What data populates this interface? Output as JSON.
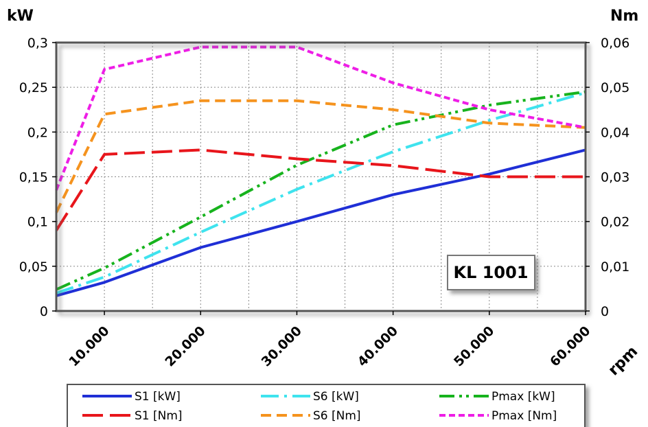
{
  "chart_data": {
    "type": "line",
    "title": "",
    "annotation": "KL 1001",
    "xlabel": "rpm",
    "ylabel_left": "kW",
    "ylabel_right": "Nm",
    "x_ticks": [
      "10.000",
      "20.000",
      "30.000",
      "40.000",
      "50.000",
      "60.000"
    ],
    "y_left_ticks": [
      "0",
      "0,05",
      "0,1",
      "0,15",
      "0,2",
      "0,25",
      "0,3"
    ],
    "y_right_ticks": [
      "0",
      "0,01",
      "0,02",
      "0,03",
      "0,04",
      "0,05",
      "0,06"
    ],
    "xlim": [
      5000,
      60000
    ],
    "ylim_left": [
      0,
      0.3
    ],
    "ylim_right": [
      0,
      0.06
    ],
    "grid": true,
    "legend_position": "bottom",
    "series": [
      {
        "name": "S1 [kW]",
        "axis": "left",
        "color": "#1f2fd6",
        "style": "solid",
        "x": [
          5000,
          10000,
          20000,
          30000,
          40000,
          50000,
          60000
        ],
        "y": [
          0.017,
          0.032,
          0.071,
          0.1,
          0.13,
          0.153,
          0.18
        ]
      },
      {
        "name": "S6 [kW]",
        "axis": "left",
        "color": "#3fe3ee",
        "style": "dashdot",
        "x": [
          5000,
          10000,
          20000,
          30000,
          40000,
          50000,
          60000
        ],
        "y": [
          0.02,
          0.038,
          0.088,
          0.136,
          0.178,
          0.213,
          0.244
        ]
      },
      {
        "name": "Pmax [kW]",
        "axis": "left",
        "color": "#17b31d",
        "style": "dashdotdot",
        "x": [
          5000,
          10000,
          20000,
          30000,
          40000,
          50000,
          60000
        ],
        "y": [
          0.024,
          0.048,
          0.105,
          0.163,
          0.208,
          0.23,
          0.245
        ]
      },
      {
        "name": "S1 [Nm]",
        "axis": "right",
        "color": "#e8151b",
        "style": "longdash",
        "x": [
          5000,
          10000,
          20000,
          30000,
          40000,
          50000,
          60000
        ],
        "y": [
          0.018,
          0.035,
          0.036,
          0.034,
          0.0325,
          0.03,
          0.03
        ]
      },
      {
        "name": "S6 [Nm]",
        "axis": "right",
        "color": "#f5931e",
        "style": "dash",
        "x": [
          5000,
          10000,
          20000,
          30000,
          40000,
          50000,
          60000
        ],
        "y": [
          0.022,
          0.044,
          0.047,
          0.047,
          0.045,
          0.042,
          0.041
        ]
      },
      {
        "name": "Pmax [Nm]",
        "axis": "right",
        "color": "#ee1ee6",
        "style": "shortdash",
        "x": [
          5000,
          10000,
          20000,
          30000,
          40000,
          50000,
          60000
        ],
        "y": [
          0.027,
          0.054,
          0.059,
          0.059,
          0.051,
          0.045,
          0.041
        ]
      }
    ]
  }
}
